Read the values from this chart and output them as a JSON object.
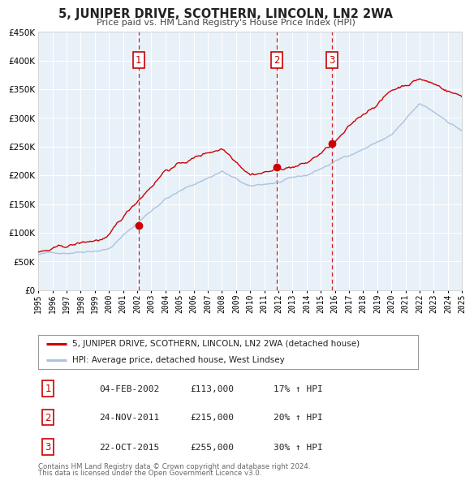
{
  "title": "5, JUNIPER DRIVE, SCOTHERN, LINCOLN, LN2 2WA",
  "subtitle": "Price paid vs. HM Land Registry's House Price Index (HPI)",
  "background_color": "#ffffff",
  "plot_bg_color": "#e8f0f8",
  "grid_color": "#ffffff",
  "xmin": 1995,
  "xmax": 2025,
  "ymin": 0,
  "ymax": 450000,
  "yticks": [
    0,
    50000,
    100000,
    150000,
    200000,
    250000,
    300000,
    350000,
    400000,
    450000
  ],
  "ytick_labels": [
    "£0",
    "£50K",
    "£100K",
    "£150K",
    "£200K",
    "£250K",
    "£300K",
    "£350K",
    "£400K",
    "£450K"
  ],
  "xticks": [
    1995,
    1996,
    1997,
    1998,
    1999,
    2000,
    2001,
    2002,
    2003,
    2004,
    2005,
    2006,
    2007,
    2008,
    2009,
    2010,
    2011,
    2012,
    2013,
    2014,
    2015,
    2016,
    2017,
    2018,
    2019,
    2020,
    2021,
    2022,
    2023,
    2024,
    2025
  ],
  "hpi_color": "#aac4e0",
  "price_color": "#cc0000",
  "sale_dot_color": "#cc0000",
  "vline_color": "#cc0000",
  "sales": [
    {
      "num": 1,
      "year": 2002.09,
      "price": 113000
    },
    {
      "num": 2,
      "year": 2011.9,
      "price": 215000
    },
    {
      "num": 3,
      "year": 2015.8,
      "price": 255000
    }
  ],
  "legend_line1": "5, JUNIPER DRIVE, SCOTHERN, LINCOLN, LN2 2WA (detached house)",
  "legend_line2": "HPI: Average price, detached house, West Lindsey",
  "footer1": "Contains HM Land Registry data © Crown copyright and database right 2024.",
  "footer2": "This data is licensed under the Open Government Licence v3.0.",
  "table_rows": [
    {
      "num": 1,
      "date": "04-FEB-2002",
      "price": "£113,000",
      "hpi": "17% ↑ HPI"
    },
    {
      "num": 2,
      "date": "24-NOV-2011",
      "price": "£215,000",
      "hpi": "20% ↑ HPI"
    },
    {
      "num": 3,
      "date": "22-OCT-2015",
      "price": "£255,000",
      "hpi": "30% ↑ HPI"
    }
  ]
}
